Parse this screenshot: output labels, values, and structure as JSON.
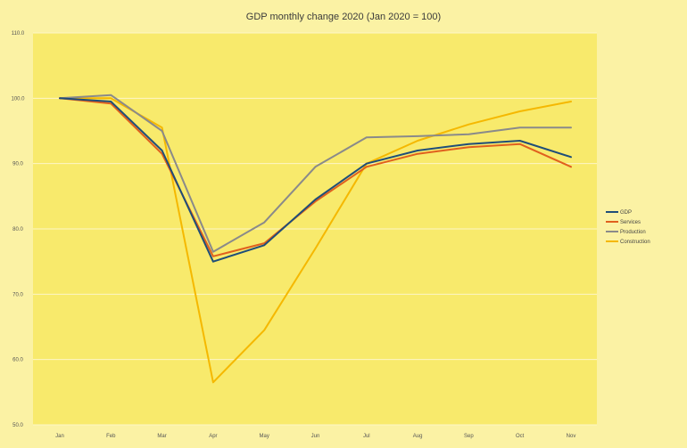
{
  "chart_data": {
    "type": "line",
    "title": "GDP monthly change 2020 (Jan 2020 = 100)",
    "xlabel": "",
    "ylabel": "",
    "categories": [
      "Jan",
      "Feb",
      "Mar",
      "Apr",
      "May",
      "Jun",
      "Jul",
      "Aug",
      "Sep",
      "Oct",
      "Nov"
    ],
    "ylim": [
      50,
      110
    ],
    "yticks": [
      50,
      60,
      70,
      80,
      90,
      100,
      110
    ],
    "ytick_labels": [
      "50.0",
      "60.0",
      "70.0",
      "80.0",
      "90.0",
      "100.0",
      "110.0"
    ],
    "grid": true,
    "legend_position": "right",
    "series": [
      {
        "name": "GDP",
        "color": "#1f4e79",
        "values": [
          100.0,
          99.5,
          92.0,
          75.0,
          77.5,
          84.5,
          90.0,
          92.0,
          93.0,
          93.5,
          91.0
        ]
      },
      {
        "name": "Services",
        "color": "#e0601e",
        "values": [
          100.0,
          99.2,
          91.5,
          75.8,
          77.8,
          84.2,
          89.5,
          91.5,
          92.5,
          93.0,
          89.5
        ]
      },
      {
        "name": "Production",
        "color": "#8a8a8a",
        "values": [
          100.0,
          100.5,
          95.0,
          76.5,
          81.0,
          89.5,
          94.0,
          94.2,
          94.5,
          95.5,
          95.5
        ]
      },
      {
        "name": "Construction",
        "color": "#f5b800",
        "values": [
          100.0,
          100.0,
          95.5,
          56.5,
          64.5,
          77.0,
          90.0,
          93.5,
          96.0,
          98.0,
          99.5
        ]
      }
    ]
  }
}
